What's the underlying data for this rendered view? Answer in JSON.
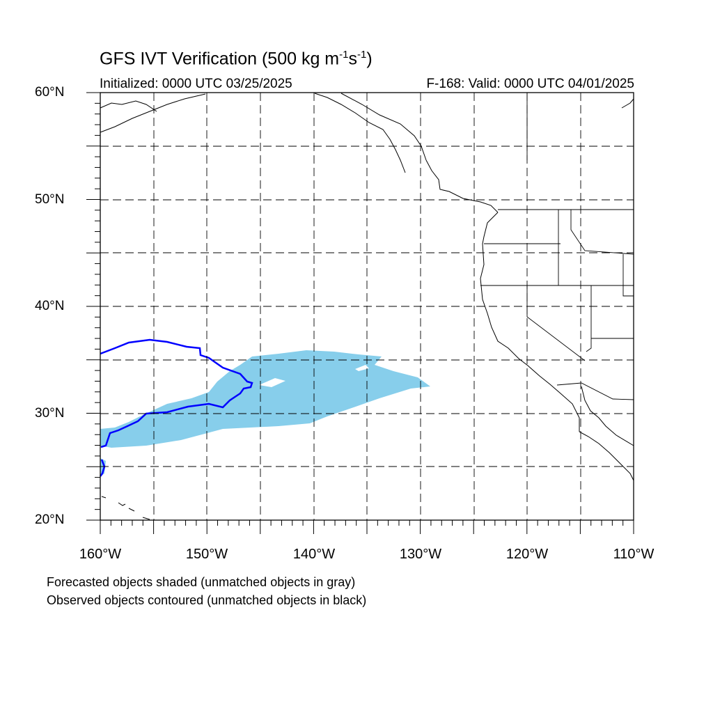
{
  "header": {
    "title_main": "GFS IVT Verification (500 kg m",
    "title_exp1": "-1",
    "title_mid": "s",
    "title_exp2": "-1",
    "title_end": ")",
    "initialized": "Initialized: 0000 UTC 03/25/2025",
    "valid": "F-168: Valid: 0000 UTC 04/01/2025"
  },
  "axes": {
    "lat_labels": [
      "60°N",
      "50°N",
      "40°N",
      "30°N",
      "20°N"
    ],
    "lon_labels": [
      "160°W",
      "150°W",
      "140°W",
      "130°W",
      "120°W",
      "110°W"
    ],
    "lat_range": [
      20,
      60
    ],
    "lon_range": [
      -160,
      -110
    ],
    "gridlines": "dashed every 5 degrees"
  },
  "legend": {
    "line1": "Forecasted objects shaded (unmatched objects in gray)",
    "line2": "Observed objects contoured (unmatched objects in black)"
  },
  "colors": {
    "forecast_fill": "#87ceeb",
    "observed_contour": "#0000ff",
    "coastline": "#000000",
    "grid": "#000000"
  }
}
